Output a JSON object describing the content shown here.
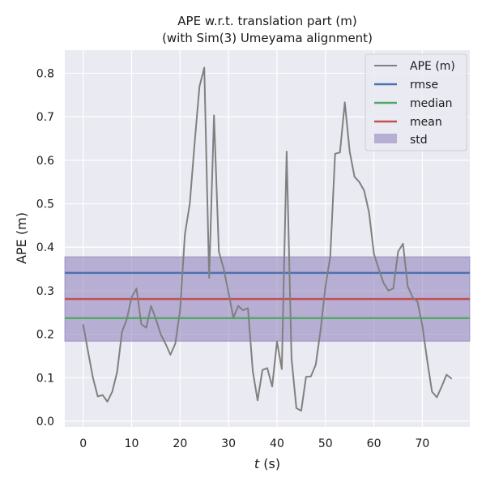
{
  "chart_data": {
    "type": "line",
    "title_line1": "APE w.r.t. translation part (m)",
    "title_line2": "(with Sim(3) Umeyama alignment)",
    "xlabel_var": "t",
    "xlabel_unit": " (s)",
    "ylabel": "APE (m)",
    "xlim": [
      -3.8,
      79.8
    ],
    "ylim": [
      -0.013,
      0.853
    ],
    "xticks": [
      0,
      10,
      20,
      30,
      40,
      50,
      60,
      70
    ],
    "yticks": [
      0.0,
      0.1,
      0.2,
      0.3,
      0.4,
      0.5,
      0.6,
      0.7,
      0.8
    ],
    "ytick_labels": [
      "0.0",
      "0.1",
      "0.2",
      "0.3",
      "0.4",
      "0.5",
      "0.6",
      "0.7",
      "0.8"
    ],
    "grid": true,
    "legend_position": "top-right",
    "background_color": "#eaeaf2",
    "series": {
      "name": "APE (m)",
      "color": "#808080",
      "x": [
        0,
        1,
        2,
        3,
        4,
        5,
        6,
        7,
        8,
        9,
        10,
        11,
        12,
        13,
        14,
        15,
        16,
        17,
        18,
        19,
        20,
        21,
        22,
        23,
        24,
        25,
        26,
        27,
        28,
        29,
        30,
        31,
        32,
        33,
        34,
        35,
        36,
        37,
        38,
        39,
        40,
        41,
        42,
        43,
        44,
        45,
        46,
        47,
        48,
        49,
        50,
        51,
        52,
        53,
        54,
        55,
        56,
        57,
        58,
        59,
        60,
        61,
        62,
        63,
        64,
        65,
        66,
        67,
        68,
        69,
        70,
        71,
        72,
        73,
        74,
        75,
        76
      ],
      "y": [
        0.222,
        0.16,
        0.1,
        0.057,
        0.06,
        0.045,
        0.068,
        0.113,
        0.205,
        0.235,
        0.285,
        0.305,
        0.223,
        0.215,
        0.265,
        0.235,
        0.2,
        0.178,
        0.153,
        0.178,
        0.255,
        0.43,
        0.5,
        0.64,
        0.77,
        0.813,
        0.33,
        0.703,
        0.39,
        0.35,
        0.295,
        0.238,
        0.265,
        0.255,
        0.26,
        0.115,
        0.048,
        0.118,
        0.122,
        0.08,
        0.183,
        0.12,
        0.62,
        0.145,
        0.03,
        0.024,
        0.102,
        0.103,
        0.13,
        0.21,
        0.31,
        0.38,
        0.615,
        0.618,
        0.733,
        0.62,
        0.562,
        0.55,
        0.53,
        0.48,
        0.385,
        0.35,
        0.318,
        0.3,
        0.305,
        0.39,
        0.408,
        0.31,
        0.285,
        0.275,
        0.22,
        0.14,
        0.068,
        0.055,
        0.08,
        0.107,
        0.098
      ]
    },
    "stats": [
      {
        "name": "rmse",
        "value": 0.341,
        "color": "#4c72b0"
      },
      {
        "name": "median",
        "value": 0.237,
        "color": "#55a868"
      },
      {
        "name": "mean",
        "value": 0.281,
        "color": "#c44e52"
      }
    ],
    "std": {
      "name": "std",
      "low": 0.184,
      "high": 0.378,
      "color": "#8172b3"
    }
  }
}
